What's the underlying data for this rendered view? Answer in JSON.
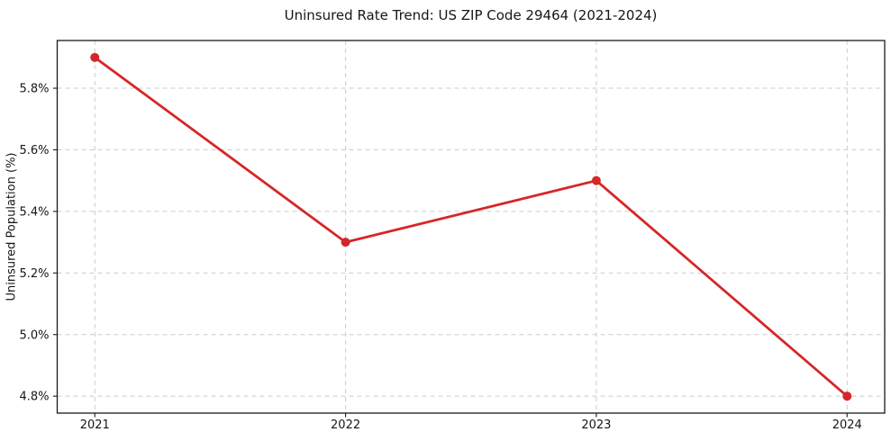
{
  "chart_data": {
    "type": "line",
    "title": "Uninsured Rate Trend: US ZIP Code 29464 (2021-2024)",
    "xlabel": "",
    "ylabel": "Uninsured Population (%)",
    "x": [
      2021,
      2022,
      2023,
      2024
    ],
    "series": [
      {
        "name": "Uninsured rate",
        "values": [
          5.9,
          5.3,
          5.5,
          4.8
        ]
      }
    ],
    "xticks": [
      2021,
      2022,
      2023,
      2024
    ],
    "xtick_labels": [
      "2021",
      "2022",
      "2023",
      "2024"
    ],
    "yticks": [
      4.8,
      5.0,
      5.2,
      5.4,
      5.6,
      5.8
    ],
    "ytick_labels": [
      "4.8%",
      "5.0%",
      "5.2%",
      "5.4%",
      "5.6%",
      "5.8%"
    ],
    "xlim": [
      2020.85,
      2024.15
    ],
    "ylim": [
      4.745,
      5.955
    ],
    "grid": true,
    "legend": "none",
    "line_color": "#d62728",
    "marker": "circle",
    "marker_color": "#d62728",
    "grid_color": "#cbcbcb",
    "spine_color": "#1a1a1a",
    "background_color": "#ffffff"
  }
}
